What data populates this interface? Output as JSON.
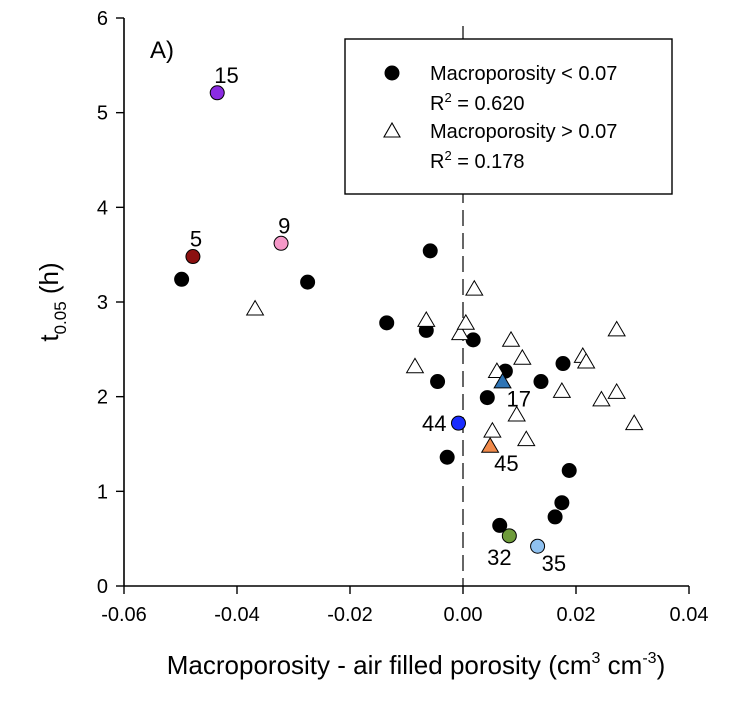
{
  "chart_data": {
    "type": "scatter",
    "panel_label": "A)",
    "xlabel_main": "Macroporosity - air filled porosity (cm",
    "xlabel_sup1": "3",
    "xlabel_mid": " cm",
    "xlabel_sup2": "-3",
    "xlabel_end": ")",
    "ylabel_main": "t",
    "ylabel_sub": "0.05",
    "ylabel_end": " (h)",
    "xlim": [
      -0.06,
      0.04
    ],
    "ylim": [
      0,
      6
    ],
    "x_ticks": [
      "-0.06",
      "-0.04",
      "-0.02",
      "0.00",
      "0.02",
      "0.04"
    ],
    "y_ticks": [
      "0",
      "1",
      "2",
      "3",
      "4",
      "5",
      "6"
    ],
    "grid": false,
    "reference_line": {
      "x": 0.0,
      "style": "dashed"
    },
    "legend": {
      "placement": "top-right",
      "entries": [
        {
          "label": "Macroporosity <  0.07",
          "r2_prefix": "R",
          "r2_sup": "2",
          "r2_value": " = 0.620",
          "marker": "filled-circle"
        },
        {
          "label": "Macroporosity > 0.07",
          "r2_prefix": "R",
          "r2_sup": "2",
          "r2_value": " = 0.178",
          "marker": "open-triangle"
        }
      ]
    },
    "series": [
      {
        "name": "Macroporosity <  0.07",
        "marker": "circle",
        "color": "#000000",
        "points": [
          {
            "x": -0.0498,
            "y": 3.24
          },
          {
            "x": -0.0275,
            "y": 3.21
          },
          {
            "x": -0.0135,
            "y": 2.78
          },
          {
            "x": -0.0058,
            "y": 3.54
          },
          {
            "x": -0.0065,
            "y": 2.7
          },
          {
            "x": -0.0045,
            "y": 2.16
          },
          {
            "x": 0.0018,
            "y": 2.6
          },
          {
            "x": -0.0028,
            "y": 1.36
          },
          {
            "x": 0.0043,
            "y": 1.99
          },
          {
            "x": 0.0075,
            "y": 2.27
          },
          {
            "x": 0.0138,
            "y": 2.16
          },
          {
            "x": 0.0177,
            "y": 2.35
          },
          {
            "x": 0.0065,
            "y": 0.64
          },
          {
            "x": 0.0163,
            "y": 0.73
          },
          {
            "x": 0.0175,
            "y": 0.88
          },
          {
            "x": 0.0188,
            "y": 1.22
          }
        ]
      },
      {
        "name": "Macroporosity > 0.07",
        "marker": "triangle",
        "color": "#ffffff",
        "points": [
          {
            "x": -0.0368,
            "y": 2.93
          },
          {
            "x": -0.0065,
            "y": 2.81
          },
          {
            "x": -0.0085,
            "y": 2.32
          },
          {
            "x": -0.0005,
            "y": 2.67
          },
          {
            "x": 0.0005,
            "y": 2.78
          },
          {
            "x": 0.002,
            "y": 3.14
          },
          {
            "x": 0.006,
            "y": 2.27
          },
          {
            "x": 0.0085,
            "y": 2.6
          },
          {
            "x": 0.0105,
            "y": 2.41
          },
          {
            "x": 0.0095,
            "y": 1.81
          },
          {
            "x": 0.0052,
            "y": 1.64
          },
          {
            "x": 0.0112,
            "y": 1.55
          },
          {
            "x": 0.0175,
            "y": 2.06
          },
          {
            "x": 0.0212,
            "y": 2.43
          },
          {
            "x": 0.0218,
            "y": 2.37
          },
          {
            "x": 0.0245,
            "y": 1.97
          },
          {
            "x": 0.0272,
            "y": 2.05
          },
          {
            "x": 0.0272,
            "y": 2.71
          },
          {
            "x": 0.0303,
            "y": 1.72
          }
        ]
      }
    ],
    "highlighted_points": [
      {
        "label": "15",
        "x": -0.0435,
        "y": 5.21,
        "marker": "circle",
        "color": "#8b2be2",
        "label_pos": "upper-right"
      },
      {
        "label": "5",
        "x": -0.0478,
        "y": 3.48,
        "marker": "circle",
        "color": "#8b1010",
        "label_pos": "upper-right"
      },
      {
        "label": "9",
        "x": -0.0322,
        "y": 3.62,
        "marker": "circle",
        "color": "#f598c8",
        "label_pos": "upper-right"
      },
      {
        "label": "44",
        "x": -0.0008,
        "y": 1.72,
        "marker": "circle",
        "color": "#1a2cff",
        "label_pos": "left"
      },
      {
        "label": "17",
        "x": 0.007,
        "y": 2.16,
        "marker": "triangle",
        "color": "#2e74b5",
        "label_pos": "lower-right"
      },
      {
        "label": "45",
        "x": 0.0048,
        "y": 1.48,
        "marker": "triangle",
        "color": "#f08a4b",
        "label_pos": "lower-right"
      },
      {
        "label": "32",
        "x": 0.0082,
        "y": 0.53,
        "marker": "circle",
        "color": "#6e9b3a",
        "label_pos": "below"
      },
      {
        "label": "35",
        "x": 0.0132,
        "y": 0.42,
        "marker": "circle",
        "color": "#8fc1f0",
        "label_pos": "lower-right"
      }
    ]
  }
}
